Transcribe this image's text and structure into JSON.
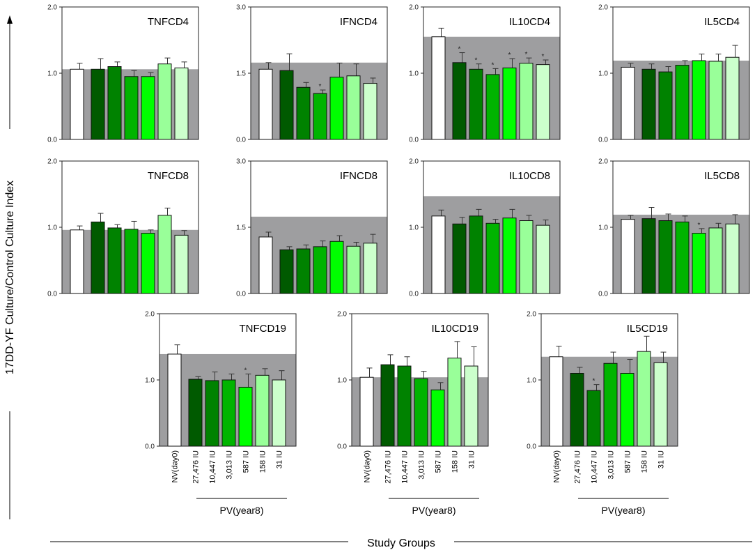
{
  "figure": {
    "y_axis_label": "17DD-YF Culture/Control Culture Index",
    "x_axis_label": "Study Groups",
    "pv_group_label": "PV(year8)",
    "group_labels": [
      "NV(day0)",
      "27,476 IU",
      "10,447 IU",
      "3,013 IU",
      "587 IU",
      "158 IU",
      "31 IU"
    ],
    "bar_colors": [
      "#ffffff",
      "#005a00",
      "#008200",
      "#00b400",
      "#00ff00",
      "#99ff99",
      "#ccffcc"
    ],
    "significance_marker": "*"
  },
  "chart_data": [
    {
      "type": "bar",
      "title": "TNFCD4",
      "ylim": [
        0,
        2
      ],
      "ytick_labels": [
        "0.0",
        "1.0",
        "2.0"
      ],
      "reference": 1.06,
      "values": [
        1.06,
        1.06,
        1.1,
        0.95,
        0.95,
        1.14,
        1.08
      ],
      "errors": [
        0.09,
        0.16,
        0.07,
        0.09,
        0.06,
        0.09,
        0.09
      ],
      "significant": [
        false,
        false,
        false,
        false,
        false,
        false,
        false
      ]
    },
    {
      "type": "bar",
      "title": "IFNCD4",
      "ylim": [
        0,
        3
      ],
      "ytick_labels": [
        "0.0",
        "1.5",
        "3.0"
      ],
      "reference": 1.74,
      "values": [
        1.59,
        1.56,
        1.18,
        1.04,
        1.41,
        1.44,
        1.27
      ],
      "errors": [
        0.15,
        0.38,
        0.11,
        0.08,
        0.32,
        0.27,
        0.12
      ],
      "significant": [
        false,
        false,
        false,
        true,
        false,
        false,
        false
      ]
    },
    {
      "type": "bar",
      "title": "IL10CD4",
      "ylim": [
        0,
        2
      ],
      "ytick_labels": [
        "0.0",
        "1.0",
        "2.0"
      ],
      "reference": 1.55,
      "values": [
        1.55,
        1.16,
        1.06,
        0.98,
        1.08,
        1.15,
        1.13
      ],
      "errors": [
        0.13,
        0.15,
        0.08,
        0.09,
        0.14,
        0.08,
        0.07
      ],
      "significant": [
        false,
        true,
        true,
        true,
        true,
        true,
        true
      ]
    },
    {
      "type": "bar",
      "title": "IL5CD4",
      "ylim": [
        0,
        2
      ],
      "ytick_labels": [
        "0.0",
        "1.0",
        "2.0"
      ],
      "reference": 1.19,
      "values": [
        1.09,
        1.06,
        1.02,
        1.12,
        1.19,
        1.18,
        1.24
      ],
      "errors": [
        0.06,
        0.08,
        0.08,
        0.07,
        0.1,
        0.11,
        0.18
      ],
      "significant": [
        false,
        false,
        false,
        false,
        false,
        false,
        false
      ]
    },
    {
      "type": "bar",
      "title": "TNFCD8",
      "ylim": [
        0,
        2
      ],
      "ytick_labels": [
        "0.0",
        "1.0",
        "2.0"
      ],
      "reference": 0.96,
      "values": [
        0.96,
        1.08,
        0.99,
        0.97,
        0.91,
        1.18,
        0.88
      ],
      "errors": [
        0.06,
        0.13,
        0.05,
        0.12,
        0.05,
        0.11,
        0.07
      ],
      "significant": [
        false,
        false,
        false,
        false,
        false,
        false,
        false
      ]
    },
    {
      "type": "bar",
      "title": "IFNCD8",
      "ylim": [
        0,
        3
      ],
      "ytick_labels": [
        "0.0",
        "1.5",
        "3.0"
      ],
      "reference": 1.74,
      "values": [
        1.28,
        0.99,
        1.01,
        1.06,
        1.18,
        1.07,
        1.14
      ],
      "errors": [
        0.11,
        0.07,
        0.09,
        0.13,
        0.13,
        0.09,
        0.2
      ],
      "significant": [
        false,
        false,
        false,
        false,
        false,
        false,
        false
      ]
    },
    {
      "type": "bar",
      "title": "IL10CD8",
      "ylim": [
        0,
        2
      ],
      "ytick_labels": [
        "0.0",
        "1.0",
        "2.0"
      ],
      "reference": 1.47,
      "values": [
        1.17,
        1.05,
        1.17,
        1.06,
        1.14,
        1.1,
        1.03
      ],
      "errors": [
        0.09,
        0.1,
        0.1,
        0.06,
        0.13,
        0.08,
        0.08
      ],
      "significant": [
        false,
        false,
        false,
        false,
        false,
        false,
        false
      ]
    },
    {
      "type": "bar",
      "title": "IL5CD8",
      "ylim": [
        0,
        2
      ],
      "ytick_labels": [
        "0.0",
        "1.0",
        "2.0"
      ],
      "reference": 1.19,
      "values": [
        1.12,
        1.13,
        1.1,
        1.08,
        0.91,
        0.99,
        1.05
      ],
      "errors": [
        0.06,
        0.17,
        0.1,
        0.09,
        0.07,
        0.07,
        0.14
      ],
      "significant": [
        false,
        false,
        false,
        false,
        true,
        false,
        false
      ]
    },
    {
      "type": "bar",
      "title": "TNFCD19",
      "ylim": [
        0,
        2
      ],
      "ytick_labels": [
        "0.0",
        "1.0",
        "2.0"
      ],
      "reference": 1.39,
      "values": [
        1.39,
        1.01,
        0.99,
        1.0,
        0.89,
        1.07,
        1.0
      ],
      "errors": [
        0.14,
        0.04,
        0.13,
        0.09,
        0.2,
        0.1,
        0.14
      ],
      "significant": [
        false,
        false,
        false,
        false,
        true,
        false,
        false
      ]
    },
    {
      "type": "bar",
      "title": "IL10CD19",
      "ylim": [
        0,
        2
      ],
      "ytick_labels": [
        "0.0",
        "1.0",
        "2.0"
      ],
      "reference": 1.04,
      "values": [
        1.04,
        1.23,
        1.21,
        1.02,
        0.85,
        1.33,
        1.21
      ],
      "errors": [
        0.14,
        0.15,
        0.14,
        0.11,
        0.11,
        0.25,
        0.29
      ],
      "significant": [
        false,
        false,
        false,
        false,
        false,
        false,
        false
      ]
    },
    {
      "type": "bar",
      "title": "IL5CD19",
      "ylim": [
        0,
        2
      ],
      "ytick_labels": [
        "0.0",
        "1.0",
        "2.0"
      ],
      "reference": 1.35,
      "values": [
        1.35,
        1.1,
        0.84,
        1.25,
        1.1,
        1.43,
        1.26
      ],
      "errors": [
        0.16,
        0.09,
        0.09,
        0.17,
        0.21,
        0.23,
        0.16
      ],
      "significant": [
        false,
        false,
        true,
        false,
        false,
        false,
        false
      ]
    }
  ]
}
